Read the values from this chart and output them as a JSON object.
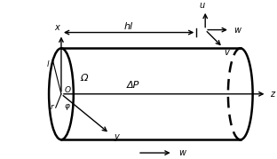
{
  "fig_width": 3.12,
  "fig_height": 1.79,
  "dpi": 100,
  "bg_color": "#ffffff",
  "line_color": "#000000",
  "labels": {
    "x_axis": "x",
    "z_axis": "z",
    "y_axis": "y",
    "u_axis": "u",
    "v_axis": "v",
    "w_axis": "w",
    "w_flow": "w",
    "hl": "hl",
    "dP": "ΔP",
    "Omega": "Ω",
    "O": "O",
    "l": "l",
    "r": "r",
    "phi": "φ"
  }
}
